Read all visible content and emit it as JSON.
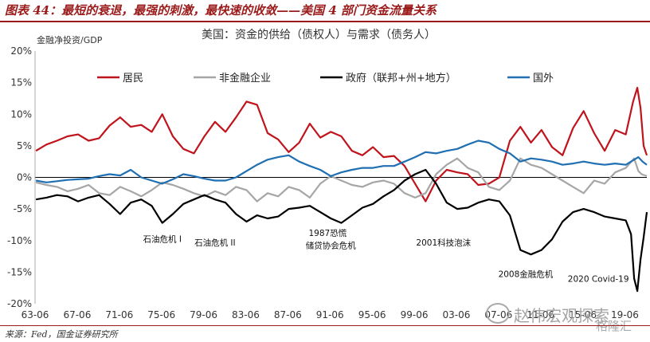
{
  "header": {
    "title": "图表 44：最短的衰退，最强的刺激，最快速的收敛——美国 4 部门资金流量关系"
  },
  "source": "来源：Fed，国金证券研究所",
  "watermark": {
    "text": "赵伟宏观探索",
    "logo": "格隆汇"
  },
  "colors": {
    "residents": "#c0141c",
    "nonfin": "#a6a6a6",
    "gov": "#000000",
    "foreign": "#1f6fb2",
    "header": "#9b1b1b"
  },
  "chart_data": {
    "type": "line",
    "title": "美国：资金的供给（债权人）与需求（债务人）",
    "ylabel": "金融净投资/GDP",
    "ylim": [
      -20,
      20
    ],
    "yticks": [
      "20%",
      "15%",
      "10%",
      "5%",
      "0%",
      "-5%",
      "-10%",
      "-15%",
      "-20%"
    ],
    "ytick_values": [
      20,
      15,
      10,
      5,
      0,
      -5,
      -10,
      -15,
      -20
    ],
    "xlim": [
      1963.42,
      2021.5
    ],
    "xticks": [
      "63-06",
      "67-06",
      "71-06",
      "75-06",
      "79-06",
      "83-06",
      "87-06",
      "91-06",
      "95-06",
      "99-06",
      "03-06",
      "07-06",
      "11-06",
      "15-06",
      "19-06"
    ],
    "xtick_values": [
      1963.42,
      1967.42,
      1971.42,
      1975.42,
      1979.42,
      1983.42,
      1987.42,
      1991.42,
      1995.42,
      1999.42,
      2003.42,
      2007.42,
      2011.42,
      2015.42,
      2019.42
    ],
    "legend_position": "top",
    "annotations": [
      {
        "text": "石油危机 I",
        "x": 1975.5,
        "y": -10.2
      },
      {
        "text": "石油危机 II",
        "x": 1980.5,
        "y": -10.8
      },
      {
        "text": "1987恐慌",
        "x": 1991.2,
        "y": -9.3
      },
      {
        "text": "储贷协会危机",
        "x": 1991.5,
        "y": -11.2
      },
      {
        "text": "2001科技泡沫",
        "x": 2002.2,
        "y": -10.8
      },
      {
        "text": "2008金融危机",
        "x": 2010.0,
        "y": -15.8
      },
      {
        "text": "2020 Covid-19",
        "x": 2016.9,
        "y": -16.5
      }
    ],
    "series": [
      {
        "name": "居民",
        "color": "#c0141c",
        "points": [
          [
            1963.5,
            4.2
          ],
          [
            1964.5,
            5.2
          ],
          [
            1965.5,
            5.8
          ],
          [
            1966.5,
            6.5
          ],
          [
            1967.5,
            6.8
          ],
          [
            1968.5,
            5.8
          ],
          [
            1969.5,
            6.2
          ],
          [
            1970.5,
            8.2
          ],
          [
            1971.5,
            9.5
          ],
          [
            1972.5,
            8.0
          ],
          [
            1973.5,
            8.3
          ],
          [
            1974.5,
            7.2
          ],
          [
            1975.5,
            10.0
          ],
          [
            1976.5,
            6.5
          ],
          [
            1977.5,
            4.5
          ],
          [
            1978.5,
            3.8
          ],
          [
            1979.5,
            6.5
          ],
          [
            1980.5,
            8.8
          ],
          [
            1981.5,
            7.2
          ],
          [
            1982.5,
            9.5
          ],
          [
            1983.5,
            12.0
          ],
          [
            1984.5,
            11.5
          ],
          [
            1985.5,
            7.0
          ],
          [
            1986.5,
            6.0
          ],
          [
            1987.5,
            4.0
          ],
          [
            1988.5,
            5.5
          ],
          [
            1989.5,
            8.5
          ],
          [
            1990.5,
            6.3
          ],
          [
            1991.5,
            7.2
          ],
          [
            1992.5,
            6.5
          ],
          [
            1993.5,
            4.2
          ],
          [
            1994.5,
            3.5
          ],
          [
            1995.5,
            4.8
          ],
          [
            1996.5,
            3.2
          ],
          [
            1997.5,
            3.4
          ],
          [
            1998.5,
            1.8
          ],
          [
            1999.5,
            -1.0
          ],
          [
            2000.5,
            -3.8
          ],
          [
            2001.5,
            -0.5
          ],
          [
            2002.5,
            1.2
          ],
          [
            2003.5,
            0.8
          ],
          [
            2004.5,
            0.5
          ],
          [
            2005.5,
            -1.2
          ],
          [
            2006.5,
            -1.0
          ],
          [
            2007.5,
            0.0
          ],
          [
            2008.5,
            5.8
          ],
          [
            2009.5,
            8.0
          ],
          [
            2010.5,
            5.5
          ],
          [
            2011.5,
            7.5
          ],
          [
            2012.5,
            4.8
          ],
          [
            2013.5,
            3.5
          ],
          [
            2014.5,
            7.8
          ],
          [
            2015.5,
            10.5
          ],
          [
            2016.5,
            7.0
          ],
          [
            2017.5,
            4.2
          ],
          [
            2018.5,
            7.5
          ],
          [
            2019.5,
            6.8
          ],
          [
            2020.2,
            12.0
          ],
          [
            2020.6,
            14.2
          ],
          [
            2020.9,
            11.0
          ],
          [
            2021.2,
            5.0
          ],
          [
            2021.5,
            3.5
          ]
        ]
      },
      {
        "name": "非金融企业",
        "color": "#a6a6a6",
        "points": [
          [
            1963.5,
            -0.8
          ],
          [
            1964.5,
            -1.2
          ],
          [
            1965.5,
            -1.5
          ],
          [
            1966.5,
            -2.2
          ],
          [
            1967.5,
            -1.8
          ],
          [
            1968.5,
            -1.2
          ],
          [
            1969.5,
            -2.5
          ],
          [
            1970.5,
            -2.8
          ],
          [
            1971.5,
            -1.5
          ],
          [
            1972.5,
            -2.2
          ],
          [
            1973.5,
            -3.0
          ],
          [
            1974.5,
            -2.0
          ],
          [
            1975.5,
            -0.8
          ],
          [
            1976.5,
            -1.2
          ],
          [
            1977.5,
            -1.8
          ],
          [
            1978.5,
            -2.5
          ],
          [
            1979.5,
            -3.0
          ],
          [
            1980.5,
            -2.2
          ],
          [
            1981.5,
            -2.8
          ],
          [
            1982.5,
            -1.5
          ],
          [
            1983.5,
            -2.0
          ],
          [
            1984.5,
            -3.8
          ],
          [
            1985.5,
            -2.5
          ],
          [
            1986.5,
            -3.0
          ],
          [
            1987.5,
            -1.5
          ],
          [
            1988.5,
            -2.0
          ],
          [
            1989.5,
            -3.2
          ],
          [
            1990.5,
            -1.0
          ],
          [
            1991.5,
            0.2
          ],
          [
            1992.5,
            -0.5
          ],
          [
            1993.5,
            -1.2
          ],
          [
            1994.5,
            -1.5
          ],
          [
            1995.5,
            -0.8
          ],
          [
            1996.5,
            -0.5
          ],
          [
            1997.5,
            -1.0
          ],
          [
            1998.5,
            -2.5
          ],
          [
            1999.5,
            -3.2
          ],
          [
            2000.5,
            -2.5
          ],
          [
            2001.5,
            0.5
          ],
          [
            2002.5,
            2.0
          ],
          [
            2003.5,
            3.0
          ],
          [
            2004.5,
            1.5
          ],
          [
            2005.5,
            0.8
          ],
          [
            2006.5,
            -1.5
          ],
          [
            2007.5,
            -2.0
          ],
          [
            2008.5,
            -0.5
          ],
          [
            2009.5,
            3.0
          ],
          [
            2010.5,
            2.0
          ],
          [
            2011.5,
            1.5
          ],
          [
            2012.5,
            0.5
          ],
          [
            2013.5,
            -0.5
          ],
          [
            2014.5,
            -1.5
          ],
          [
            2015.5,
            -2.5
          ],
          [
            2016.5,
            -0.5
          ],
          [
            2017.5,
            -1.0
          ],
          [
            2018.5,
            0.8
          ],
          [
            2019.5,
            1.5
          ],
          [
            2020.3,
            3.0
          ],
          [
            2020.7,
            1.0
          ],
          [
            2021.0,
            0.5
          ],
          [
            2021.5,
            0.2
          ]
        ]
      },
      {
        "name": "政府（联邦+州+地方）",
        "color": "#000000",
        "points": [
          [
            1963.5,
            -3.5
          ],
          [
            1964.5,
            -3.2
          ],
          [
            1965.5,
            -2.8
          ],
          [
            1966.5,
            -3.0
          ],
          [
            1967.5,
            -3.8
          ],
          [
            1968.5,
            -3.2
          ],
          [
            1969.5,
            -2.8
          ],
          [
            1970.5,
            -4.2
          ],
          [
            1971.5,
            -5.8
          ],
          [
            1972.5,
            -4.0
          ],
          [
            1973.5,
            -3.5
          ],
          [
            1974.5,
            -4.5
          ],
          [
            1975.5,
            -7.2
          ],
          [
            1976.5,
            -5.8
          ],
          [
            1977.5,
            -4.2
          ],
          [
            1978.5,
            -3.5
          ],
          [
            1979.5,
            -2.8
          ],
          [
            1980.5,
            -3.5
          ],
          [
            1981.5,
            -4.0
          ],
          [
            1982.5,
            -5.8
          ],
          [
            1983.5,
            -7.0
          ],
          [
            1984.5,
            -6.0
          ],
          [
            1985.5,
            -6.5
          ],
          [
            1986.5,
            -6.2
          ],
          [
            1987.5,
            -5.0
          ],
          [
            1988.5,
            -4.8
          ],
          [
            1989.5,
            -4.5
          ],
          [
            1990.5,
            -5.5
          ],
          [
            1991.5,
            -6.5
          ],
          [
            1992.5,
            -7.2
          ],
          [
            1993.5,
            -6.0
          ],
          [
            1994.5,
            -4.8
          ],
          [
            1995.5,
            -4.2
          ],
          [
            1996.5,
            -3.0
          ],
          [
            1997.5,
            -2.0
          ],
          [
            1998.5,
            -0.5
          ],
          [
            1999.5,
            0.5
          ],
          [
            2000.5,
            1.2
          ],
          [
            2001.5,
            -1.0
          ],
          [
            2002.5,
            -4.0
          ],
          [
            2003.5,
            -5.0
          ],
          [
            2004.5,
            -4.8
          ],
          [
            2005.5,
            -4.0
          ],
          [
            2006.5,
            -3.5
          ],
          [
            2007.5,
            -3.8
          ],
          [
            2008.5,
            -6.0
          ],
          [
            2009.5,
            -11.5
          ],
          [
            2010.5,
            -12.2
          ],
          [
            2011.5,
            -11.5
          ],
          [
            2012.5,
            -9.8
          ],
          [
            2013.5,
            -7.0
          ],
          [
            2014.5,
            -5.5
          ],
          [
            2015.5,
            -5.0
          ],
          [
            2016.5,
            -5.5
          ],
          [
            2017.5,
            -6.2
          ],
          [
            2018.5,
            -6.5
          ],
          [
            2019.5,
            -6.8
          ],
          [
            2020.0,
            -9.0
          ],
          [
            2020.3,
            -16.0
          ],
          [
            2020.6,
            -18.0
          ],
          [
            2020.9,
            -13.0
          ],
          [
            2021.2,
            -9.5
          ],
          [
            2021.5,
            -5.5
          ]
        ]
      },
      {
        "name": "国外",
        "color": "#1f6fb2",
        "points": [
          [
            1963.5,
            -0.5
          ],
          [
            1964.5,
            -0.8
          ],
          [
            1965.5,
            -0.6
          ],
          [
            1966.5,
            -0.4
          ],
          [
            1967.5,
            -0.3
          ],
          [
            1968.5,
            -0.2
          ],
          [
            1969.5,
            0.2
          ],
          [
            1970.5,
            0.5
          ],
          [
            1971.5,
            0.3
          ],
          [
            1972.5,
            1.2
          ],
          [
            1973.5,
            0.0
          ],
          [
            1974.5,
            -0.5
          ],
          [
            1975.5,
            -1.0
          ],
          [
            1976.5,
            -0.3
          ],
          [
            1977.5,
            0.5
          ],
          [
            1978.5,
            0.2
          ],
          [
            1979.5,
            -0.2
          ],
          [
            1980.5,
            -0.5
          ],
          [
            1981.5,
            -0.5
          ],
          [
            1982.5,
            0.0
          ],
          [
            1983.5,
            1.0
          ],
          [
            1984.5,
            2.0
          ],
          [
            1985.5,
            2.8
          ],
          [
            1986.5,
            3.2
          ],
          [
            1987.5,
            3.5
          ],
          [
            1988.5,
            2.5
          ],
          [
            1989.5,
            1.8
          ],
          [
            1990.5,
            1.2
          ],
          [
            1991.5,
            0.2
          ],
          [
            1992.5,
            0.8
          ],
          [
            1993.5,
            1.2
          ],
          [
            1994.5,
            1.5
          ],
          [
            1995.5,
            1.5
          ],
          [
            1996.5,
            1.8
          ],
          [
            1997.5,
            1.8
          ],
          [
            1998.5,
            2.5
          ],
          [
            1999.5,
            3.2
          ],
          [
            2000.5,
            4.0
          ],
          [
            2001.5,
            3.8
          ],
          [
            2002.5,
            4.2
          ],
          [
            2003.5,
            4.5
          ],
          [
            2004.5,
            5.2
          ],
          [
            2005.5,
            5.8
          ],
          [
            2006.5,
            5.5
          ],
          [
            2007.5,
            4.5
          ],
          [
            2008.5,
            3.8
          ],
          [
            2009.5,
            2.5
          ],
          [
            2010.5,
            3.0
          ],
          [
            2011.5,
            2.8
          ],
          [
            2012.5,
            2.5
          ],
          [
            2013.5,
            2.0
          ],
          [
            2014.5,
            2.2
          ],
          [
            2015.5,
            2.5
          ],
          [
            2016.5,
            2.2
          ],
          [
            2017.5,
            2.0
          ],
          [
            2018.5,
            2.2
          ],
          [
            2019.5,
            2.0
          ],
          [
            2020.3,
            2.8
          ],
          [
            2020.7,
            3.2
          ],
          [
            2021.1,
            2.5
          ],
          [
            2021.5,
            2.0
          ]
        ]
      }
    ]
  }
}
